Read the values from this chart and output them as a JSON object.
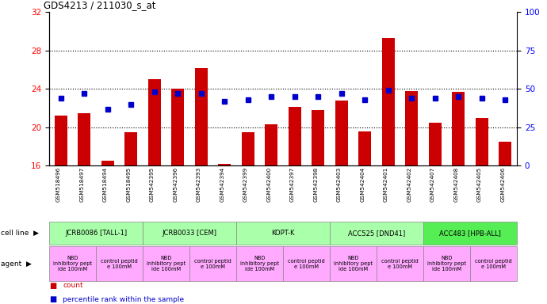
{
  "title": "GDS4213 / 211030_s_at",
  "samples": [
    "GSM518496",
    "GSM518497",
    "GSM518494",
    "GSM518495",
    "GSM542395",
    "GSM542396",
    "GSM542393",
    "GSM542394",
    "GSM542399",
    "GSM542400",
    "GSM542397",
    "GSM542398",
    "GSM542403",
    "GSM542404",
    "GSM542401",
    "GSM542402",
    "GSM542407",
    "GSM542408",
    "GSM542405",
    "GSM542406"
  ],
  "bar_values": [
    21.2,
    21.5,
    16.5,
    19.5,
    25.0,
    24.0,
    26.2,
    16.2,
    19.5,
    20.3,
    22.1,
    21.8,
    22.8,
    19.6,
    29.3,
    23.8,
    20.5,
    23.7,
    21.0,
    18.5
  ],
  "blue_values_pct": [
    44,
    47,
    37,
    40,
    48,
    47,
    47,
    42,
    43,
    45,
    45,
    45,
    47,
    43,
    49,
    44,
    44,
    45,
    44,
    43
  ],
  "cell_lines": [
    {
      "label": "JCRB0086 [TALL-1]",
      "start": 0,
      "end": 4,
      "color": "#aaffaa"
    },
    {
      "label": "JCRB0033 [CEM]",
      "start": 4,
      "end": 8,
      "color": "#aaffaa"
    },
    {
      "label": "KOPT-K",
      "start": 8,
      "end": 12,
      "color": "#aaffaa"
    },
    {
      "label": "ACC525 [DND41]",
      "start": 12,
      "end": 16,
      "color": "#aaffaa"
    },
    {
      "label": "ACC483 [HPB-ALL]",
      "start": 16,
      "end": 20,
      "color": "#55ee55"
    }
  ],
  "agents": [
    {
      "label": "NBD\ninhibitory pept\nide 100mM",
      "start": 0,
      "end": 2,
      "color": "#ffaaff"
    },
    {
      "label": "control peptid\ne 100mM",
      "start": 2,
      "end": 4,
      "color": "#ffaaff"
    },
    {
      "label": "NBD\ninhibitory pept\nide 100mM",
      "start": 4,
      "end": 6,
      "color": "#ffaaff"
    },
    {
      "label": "control peptid\ne 100mM",
      "start": 6,
      "end": 8,
      "color": "#ffaaff"
    },
    {
      "label": "NBD\ninhibitory pept\nide 100mM",
      "start": 8,
      "end": 10,
      "color": "#ffaaff"
    },
    {
      "label": "control peptid\ne 100mM",
      "start": 10,
      "end": 12,
      "color": "#ffaaff"
    },
    {
      "label": "NBD\ninhibitory pept\nide 100mM",
      "start": 12,
      "end": 14,
      "color": "#ffaaff"
    },
    {
      "label": "control peptid\ne 100mM",
      "start": 14,
      "end": 16,
      "color": "#ffaaff"
    },
    {
      "label": "NBD\ninhibitory pept\nide 100mM",
      "start": 16,
      "end": 18,
      "color": "#ffaaff"
    },
    {
      "label": "control peptid\ne 100mM",
      "start": 18,
      "end": 20,
      "color": "#ffaaff"
    }
  ],
  "ylim_left": [
    16,
    32
  ],
  "ylim_right": [
    0,
    100
  ],
  "yticks_left": [
    16,
    20,
    24,
    28,
    32
  ],
  "yticks_right": [
    0,
    25,
    50,
    75,
    100
  ],
  "bar_color": "#cc0000",
  "blue_color": "#0000cc",
  "bar_width": 0.55
}
